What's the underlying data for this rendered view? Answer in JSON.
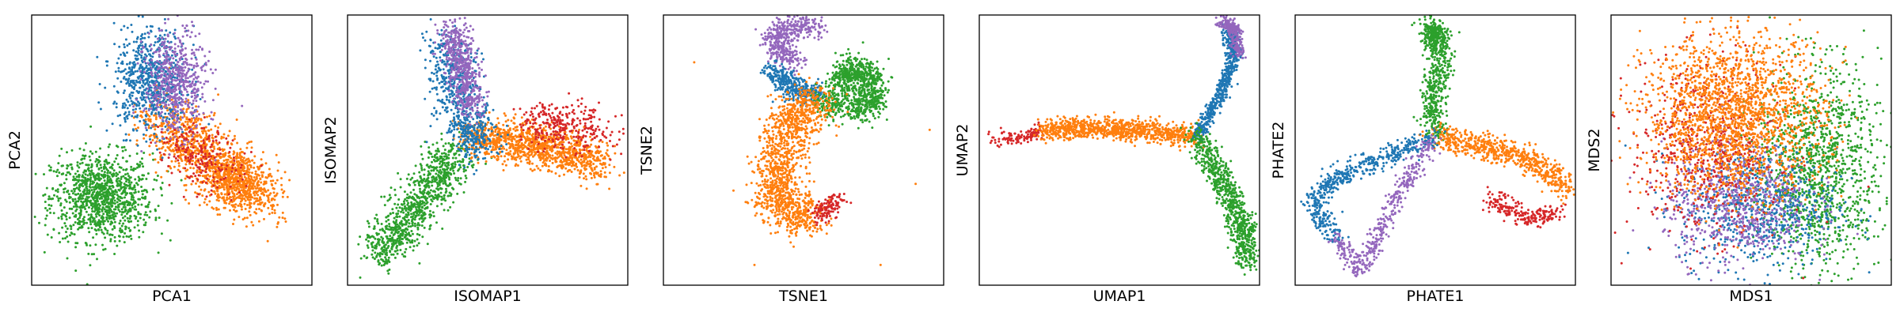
{
  "colors": {
    "blue": "#1f77b4",
    "orange": "#ff7f0e",
    "green": "#2ca02c",
    "red": "#d62728",
    "purple": "#9467bd"
  },
  "chart_data": [
    {
      "type": "scatter",
      "xlabel": "PCA1",
      "ylabel": "PCA2",
      "grid": false,
      "ticks": false,
      "xlim": [
        -10,
        10
      ],
      "ylim": [
        -10,
        10
      ],
      "clusters": [
        {
          "color": "green",
          "n": 1100,
          "center": [
            -5.0,
            -3.5
          ],
          "spread": [
            1.8,
            1.6
          ],
          "shape": "blob"
        },
        {
          "color": "orange",
          "n": 900,
          "center": [
            4.5,
            -2.2
          ],
          "spread": [
            1.6,
            1.1
          ],
          "shape": "blob",
          "angle": -35
        },
        {
          "color": "orange",
          "n": 500,
          "center": [
            0.8,
            1.0
          ],
          "spread": [
            1.7,
            1.1
          ],
          "shape": "blob",
          "angle": -30
        },
        {
          "color": "blue",
          "n": 700,
          "center": [
            -1.5,
            5.2
          ],
          "spread": [
            1.3,
            1.9
          ],
          "shape": "blob"
        },
        {
          "color": "purple",
          "n": 550,
          "center": [
            0.3,
            5.0
          ],
          "spread": [
            1.1,
            1.9
          ],
          "shape": "blob"
        },
        {
          "color": "red",
          "n": 200,
          "center": [
            2.2,
            -0.5
          ],
          "spread": [
            1.6,
            1.1
          ],
          "shape": "blob",
          "angle": -30
        }
      ]
    },
    {
      "type": "scatter",
      "xlabel": "ISOMAP1",
      "ylabel": "ISOMAP2",
      "grid": false,
      "ticks": false,
      "xlim": [
        -10,
        10
      ],
      "ylim": [
        -10,
        10
      ],
      "clusters": [
        {
          "color": "green",
          "n": 900,
          "shape": "path",
          "path": [
            [
              -7.8,
              -7.8
            ],
            [
              -5.8,
              -5.2
            ],
            [
              -3.8,
              -2.4
            ],
            [
              -2.2,
              -0.2
            ]
          ],
          "spread": 0.85
        },
        {
          "color": "orange",
          "n": 1100,
          "shape": "path",
          "path": [
            [
              -1.0,
              1.0
            ],
            [
              2.0,
              0.6
            ],
            [
              5.0,
              0.0
            ],
            [
              8.2,
              -1.0
            ]
          ],
          "spread": 0.75
        },
        {
          "color": "red",
          "n": 300,
          "shape": "path",
          "path": [
            [
              3.0,
              1.8
            ],
            [
              5.5,
              1.8
            ],
            [
              8.0,
              1.2
            ]
          ],
          "spread": 0.9
        },
        {
          "color": "blue",
          "n": 650,
          "shape": "path",
          "path": [
            [
              -3.0,
              8.0
            ],
            [
              -2.4,
              5.0
            ],
            [
              -1.6,
              2.0
            ],
            [
              -0.6,
              0.4
            ]
          ],
          "spread": 0.85
        },
        {
          "color": "purple",
          "n": 550,
          "shape": "path",
          "path": [
            [
              -2.4,
              8.8
            ],
            [
              -1.9,
              6.0
            ],
            [
              -1.0,
              3.0
            ]
          ],
          "spread": 0.6
        }
      ]
    },
    {
      "type": "scatter",
      "xlabel": "TSNE1",
      "ylabel": "TSNE2",
      "grid": false,
      "ticks": false,
      "xlim": [
        -10,
        10
      ],
      "ylim": [
        -10,
        10
      ],
      "clusters": [
        {
          "color": "purple",
          "n": 450,
          "shape": "path",
          "path": [
            [
              -0.6,
              6.5
            ],
            [
              -2.2,
              7.8
            ],
            [
              -1.2,
              9.2
            ],
            [
              1.0,
              9.0
            ]
          ],
          "spread": 0.45
        },
        {
          "color": "blue",
          "n": 350,
          "shape": "path",
          "path": [
            [
              -2.2,
              6.0
            ],
            [
              -0.8,
              4.6
            ],
            [
              1.0,
              4.0
            ]
          ],
          "spread": 0.45
        },
        {
          "color": "green",
          "n": 900,
          "shape": "path",
          "path": [
            [
              1.2,
              3.8
            ],
            [
              3.5,
              3.0
            ],
            [
              5.0,
              3.6
            ],
            [
              4.8,
              5.6
            ],
            [
              3.2,
              6.0
            ],
            [
              2.8,
              4.8
            ]
          ],
          "spread": 0.55
        },
        {
          "color": "orange",
          "n": 1300,
          "shape": "path",
          "path": [
            [
              1.0,
              3.6
            ],
            [
              -1.0,
              2.0
            ],
            [
              -2.0,
              -1.5
            ],
            [
              -1.6,
              -4.0
            ],
            [
              0.4,
              -5.2
            ]
          ],
          "spread": 0.85
        },
        {
          "color": "red",
          "n": 120,
          "shape": "path",
          "path": [
            [
              1.0,
              -4.8
            ],
            [
              2.6,
              -3.6
            ]
          ],
          "spread": 0.35
        },
        {
          "color": "orange",
          "n": 6,
          "shape": "outliers",
          "points": [
            [
              -3.5,
              -8.5
            ],
            [
              5.5,
              -8.5
            ],
            [
              -5.0,
              -3.0
            ],
            [
              9.0,
              1.5
            ],
            [
              -7.8,
              6.5
            ],
            [
              8.0,
              -2.5
            ]
          ]
        }
      ]
    },
    {
      "type": "scatter",
      "xlabel": "UMAP1",
      "ylabel": "UMAP2",
      "grid": false,
      "ticks": false,
      "xlim": [
        -10,
        10
      ],
      "ylim": [
        -10,
        10
      ],
      "clusters": [
        {
          "color": "red",
          "n": 120,
          "shape": "path",
          "path": [
            [
              -9.2,
              0.7
            ],
            [
              -7.0,
              1.0
            ],
            [
              -5.5,
              1.4
            ]
          ],
          "spread": 0.28
        },
        {
          "color": "orange",
          "n": 900,
          "shape": "path",
          "path": [
            [
              -5.5,
              1.4
            ],
            [
              -2.0,
              1.7
            ],
            [
              1.5,
              1.4
            ],
            [
              5.5,
              1.0
            ]
          ],
          "spread": 0.4
        },
        {
          "color": "blue",
          "n": 600,
          "shape": "path",
          "path": [
            [
              5.5,
              1.0
            ],
            [
              7.2,
              4.0
            ],
            [
              8.2,
              7.0
            ],
            [
              7.8,
              9.0
            ]
          ],
          "spread": 0.25
        },
        {
          "color": "purple",
          "n": 250,
          "shape": "path",
          "path": [
            [
              8.6,
              7.0
            ],
            [
              8.2,
              9.0
            ],
            [
              7.3,
              9.6
            ]
          ],
          "spread": 0.25
        },
        {
          "color": "green",
          "n": 750,
          "shape": "path",
          "path": [
            [
              5.5,
              1.0
            ],
            [
              7.5,
              -2.5
            ],
            [
              8.8,
              -5.5
            ],
            [
              9.0,
              -8.2
            ]
          ],
          "spread": 0.45
        }
      ]
    },
    {
      "type": "scatter",
      "xlabel": "PHATE1",
      "ylabel": "PHATE2",
      "grid": false,
      "ticks": false,
      "xlim": [
        -10,
        10
      ],
      "ylim": [
        -10,
        10
      ],
      "clusters": [
        {
          "color": "green",
          "n": 650,
          "shape": "path",
          "path": [
            [
              0.0,
              1.0
            ],
            [
              -0.2,
              4.0
            ],
            [
              0.4,
              6.8
            ],
            [
              -0.3,
              9.2
            ],
            [
              0.3,
              8.0
            ]
          ],
          "spread": 0.45
        },
        {
          "color": "orange",
          "n": 650,
          "shape": "path",
          "path": [
            [
              0.0,
              1.0
            ],
            [
              3.5,
              0.2
            ],
            [
              7.0,
              -0.8
            ],
            [
              9.5,
              -2.8
            ]
          ],
          "spread": 0.45
        },
        {
          "color": "red",
          "n": 220,
          "shape": "path",
          "path": [
            [
              4.0,
              -3.6
            ],
            [
              6.5,
              -5.0
            ],
            [
              8.6,
              -4.8
            ]
          ],
          "spread": 0.4
        },
        {
          "color": "blue",
          "n": 550,
          "shape": "path",
          "path": [
            [
              0.0,
              1.0
            ],
            [
              -3.5,
              -0.5
            ],
            [
              -7.0,
              -2.0
            ],
            [
              -8.8,
              -4.0
            ],
            [
              -7.0,
              -6.5
            ]
          ],
          "spread": 0.4
        },
        {
          "color": "purple",
          "n": 400,
          "shape": "path",
          "path": [
            [
              -7.0,
              -6.5
            ],
            [
              -5.4,
              -9.0
            ],
            [
              -4.0,
              -6.0
            ],
            [
              -2.2,
              -2.5
            ],
            [
              0.0,
              1.0
            ]
          ],
          "spread": 0.35
        }
      ]
    },
    {
      "type": "scatter",
      "xlabel": "MDS1",
      "ylabel": "MDS2",
      "grid": false,
      "ticks": false,
      "xlim": [
        -10,
        10
      ],
      "ylim": [
        -10,
        10
      ],
      "clusters": [
        {
          "color": "green",
          "n": 1200,
          "center": [
            4.8,
            -1.5
          ],
          "spread": [
            2.2,
            3.8
          ],
          "shape": "blob"
        },
        {
          "color": "blue",
          "n": 700,
          "center": [
            0.5,
            -4.3
          ],
          "spread": [
            2.8,
            2.2
          ],
          "shape": "blob"
        },
        {
          "color": "purple",
          "n": 700,
          "center": [
            -1.0,
            -4.0
          ],
          "spread": [
            2.6,
            2.2
          ],
          "shape": "blob"
        },
        {
          "color": "red",
          "n": 600,
          "center": [
            -3.2,
            0.2
          ],
          "spread": [
            2.7,
            3.2
          ],
          "shape": "blob"
        },
        {
          "color": "orange",
          "n": 1900,
          "center": [
            -1.2,
            2.6
          ],
          "spread": [
            3.2,
            2.9
          ],
          "shape": "blob"
        }
      ]
    }
  ]
}
